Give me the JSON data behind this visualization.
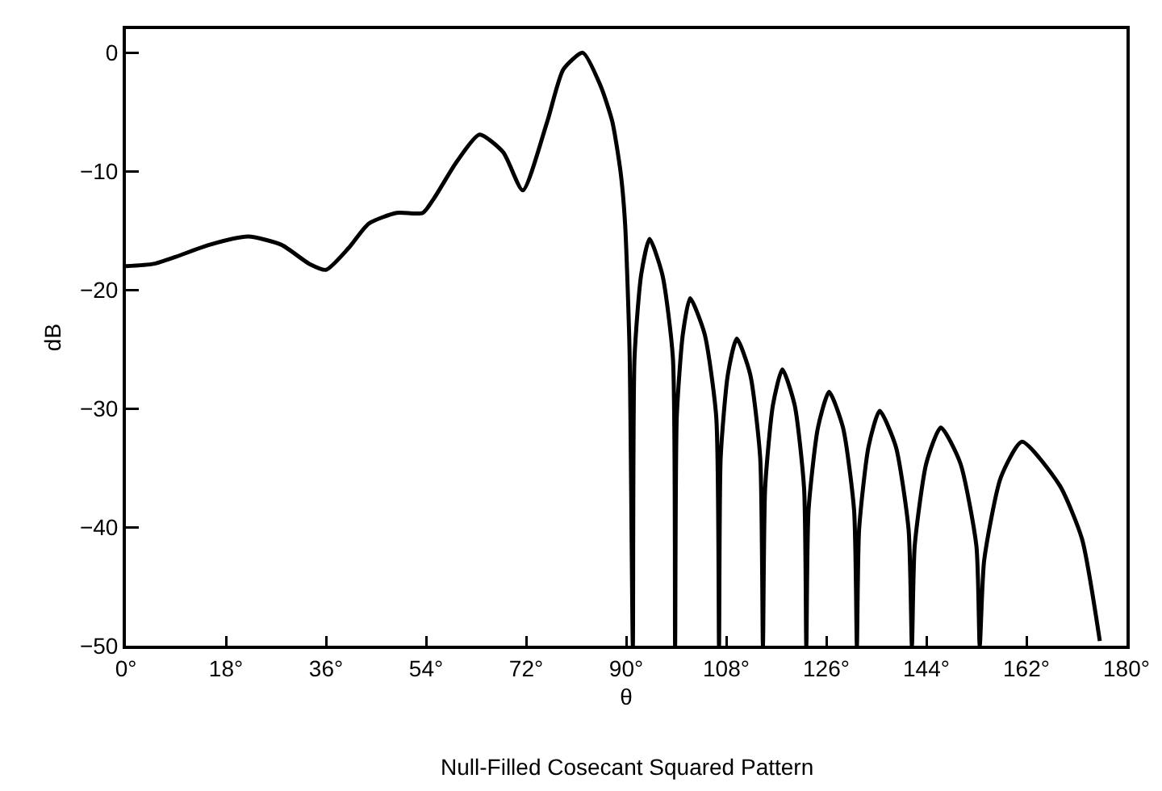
{
  "chart_data": {
    "type": "line",
    "xlabel": "θ",
    "ylabel": "dB",
    "annotations": [
      "Null-Filled Cosecant Squared Pattern"
    ],
    "xlim": [
      0,
      180
    ],
    "ylim": [
      -50,
      2
    ],
    "xticks": [
      {
        "value": 0,
        "label": "0°"
      },
      {
        "value": 18,
        "label": "18°"
      },
      {
        "value": 36,
        "label": "36°"
      },
      {
        "value": 54,
        "label": "54°"
      },
      {
        "value": 72,
        "label": "72°"
      },
      {
        "value": 90,
        "label": "90°"
      },
      {
        "value": 108,
        "label": "108°"
      },
      {
        "value": 126,
        "label": "126°"
      },
      {
        "value": 144,
        "label": "144°"
      },
      {
        "value": 162,
        "label": "162°"
      },
      {
        "value": 180,
        "label": "180°"
      }
    ],
    "yticks": [
      0,
      {
        "value": -10,
        "label": "−10"
      },
      {
        "value": -20,
        "label": "−20"
      },
      {
        "value": -30,
        "label": "−30"
      },
      {
        "value": -40,
        "label": "−40"
      },
      {
        "value": -50,
        "label": "−50"
      }
    ],
    "grid": false,
    "marker": "none",
    "line_style": "solid",
    "series": [
      {
        "color": "#000000",
        "x": [
          0,
          5,
          9,
          15,
          22,
          28,
          33,
          36,
          40,
          43.7,
          48.7,
          53.4,
          55.4,
          59.5,
          63.6,
          67.9,
          71.4,
          75.8,
          78.7,
          82.2,
          85.4,
          87.5,
          89,
          89.8,
          90.6,
          91.2,
          91.5,
          92.7,
          94.2,
          96.5,
          98.4,
          98.8,
          99.1,
          100.2,
          101.5,
          104.1,
          106.2,
          106.7,
          107,
          108.3,
          109.9,
          112.3,
          114.1,
          114.6,
          115,
          116.4,
          118.1,
          120.3,
          122,
          122.4,
          122.8,
          124.5,
          126.5,
          129,
          131,
          131.5,
          131.9,
          133.6,
          135.6,
          138.5,
          140.8,
          141.4,
          141.9,
          144,
          146.6,
          150.1,
          153,
          153.6,
          154.4,
          157.4,
          161.2,
          168,
          172,
          175.2
        ],
        "values": [
          -18,
          -17.8,
          -17.2,
          -16.2,
          -15.5,
          -16.2,
          -17.8,
          -18.3,
          -16.5,
          -14.4,
          -13.5,
          -13.5,
          -12.3,
          -9.2,
          -6.9,
          -8.4,
          -11.6,
          -5.8,
          -1.4,
          0,
          -2.8,
          -5.8,
          -10.1,
          -14.4,
          -25,
          -50,
          -25.7,
          -18.7,
          -15.7,
          -18.7,
          -25.7,
          -50,
          -30.7,
          -23.7,
          -20.7,
          -23.7,
          -30.7,
          -50,
          -34.1,
          -27.1,
          -24.1,
          -27.1,
          -34.1,
          -50,
          -36.7,
          -29.7,
          -26.7,
          -29.7,
          -36.7,
          -50,
          -38.6,
          -31.6,
          -28.6,
          -31.6,
          -38.6,
          -50,
          -40.2,
          -33.2,
          -30.2,
          -33.2,
          -40.2,
          -50,
          -41.6,
          -34.6,
          -31.6,
          -34.6,
          -41.6,
          -50,
          -42.8,
          -35.8,
          -32.8,
          -36.5,
          -41,
          -49.6
        ]
      }
    ]
  }
}
